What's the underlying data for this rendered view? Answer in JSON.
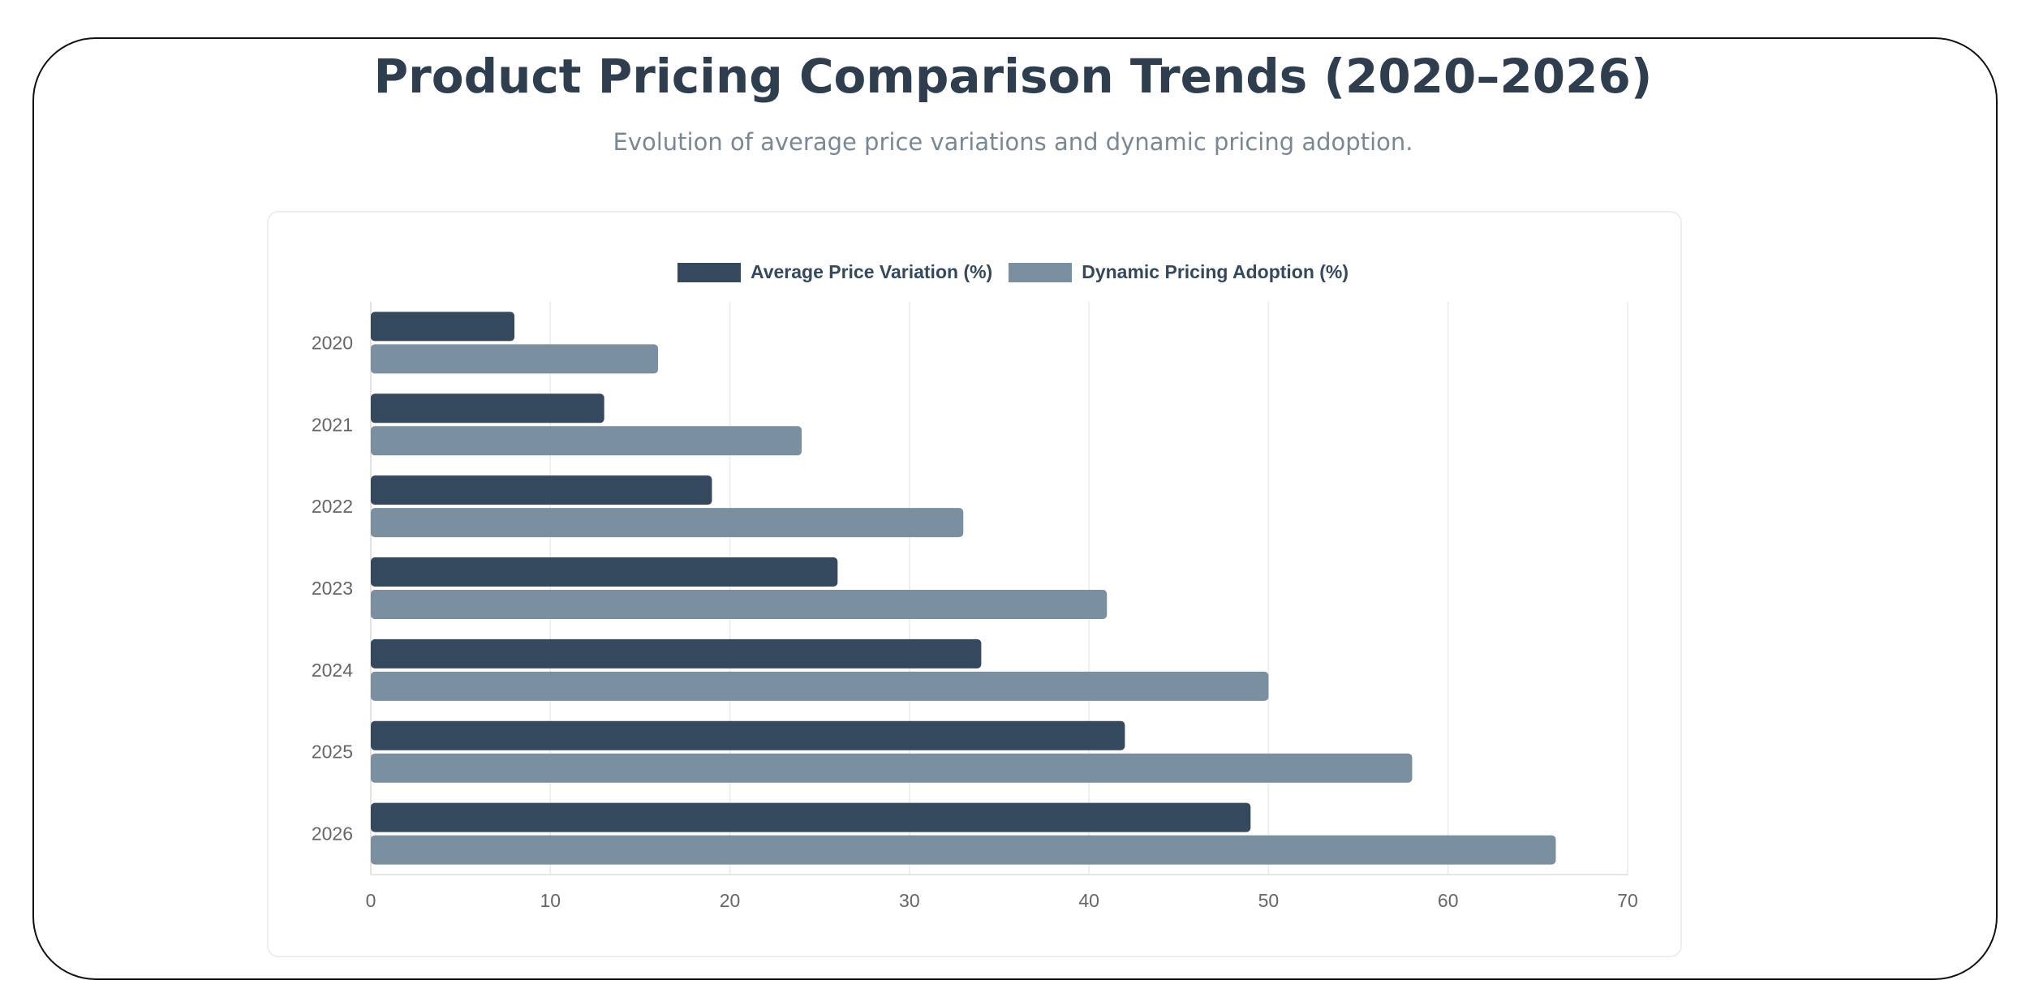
{
  "chart_data": {
    "type": "bar",
    "orientation": "horizontal",
    "title": "Product Pricing Comparison Trends (2020–2026)",
    "subtitle": "Evolution of average price variations and dynamic pricing adoption.",
    "categories": [
      "2020",
      "2021",
      "2022",
      "2023",
      "2024",
      "2025",
      "2026"
    ],
    "series": [
      {
        "name": "Average Price Variation (%)",
        "color": "#34495e",
        "values": [
          8,
          13,
          19,
          26,
          34,
          42,
          49
        ]
      },
      {
        "name": "Dynamic Pricing Adoption (%)",
        "color": "#7a8f9f",
        "values": [
          16,
          24,
          33,
          41,
          50,
          58,
          66
        ]
      }
    ],
    "xlim": [
      0,
      70
    ],
    "xticks": [
      0,
      10,
      20,
      30,
      40,
      50,
      60,
      70
    ],
    "grid": true,
    "legend": "top-center"
  }
}
